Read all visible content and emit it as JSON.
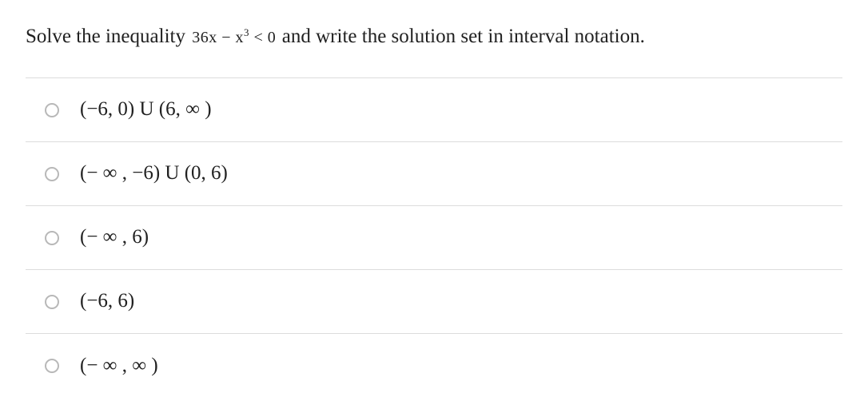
{
  "question": {
    "prefix": "Solve the inequality ",
    "math": "36x − x",
    "exponent": "3",
    "lt": " < 0 ",
    "suffix": "and write the solution set in interval notation."
  },
  "options": [
    {
      "label": "(−6, 0) U (6, ∞ )"
    },
    {
      "label": "(− ∞ , −6) U (0, 6)"
    },
    {
      "label": "(− ∞ , 6)"
    },
    {
      "label": "(−6, 6)"
    },
    {
      "label": "(− ∞ , ∞ )"
    }
  ],
  "style": {
    "background": "#ffffff",
    "text_color": "#212121",
    "border_color": "#dcdcdc",
    "radio_border": "#b8b8b8",
    "question_fontsize": 25,
    "option_fontsize": 25
  }
}
